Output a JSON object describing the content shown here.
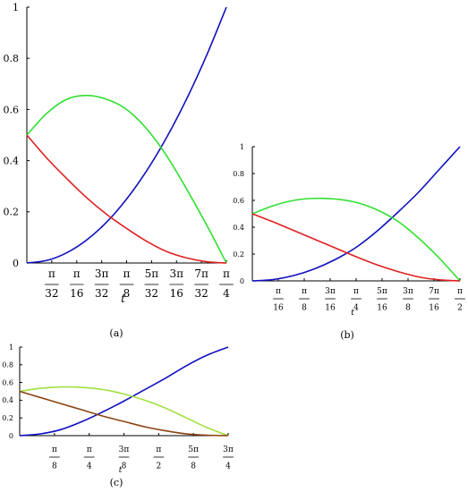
{
  "chart_data": [
    {
      "panel_label": "(a)",
      "type": "line",
      "xlabel": "t",
      "xlim": [
        0,
        0.7854
      ],
      "ylim": [
        0,
        1
      ],
      "x_ticks": [
        {
          "value": 0.09817,
          "num": "π",
          "den": "32"
        },
        {
          "value": 0.19635,
          "num": "π",
          "den": "16"
        },
        {
          "value": 0.29452,
          "num": "3π",
          "den": "32"
        },
        {
          "value": 0.3927,
          "num": "π",
          "den": "8"
        },
        {
          "value": 0.49087,
          "num": "5π",
          "den": "32"
        },
        {
          "value": 0.58905,
          "num": "3π",
          "den": "16"
        },
        {
          "value": 0.68722,
          "num": "7π",
          "den": "32"
        },
        {
          "value": 0.7854,
          "num": "π",
          "den": "4"
        }
      ],
      "y_ticks": [
        "0",
        "0.2",
        "0.4",
        "0.6",
        "0.8",
        "1"
      ],
      "y_tick_values": [
        0,
        0.2,
        0.4,
        0.6,
        0.8,
        1
      ],
      "series": [
        {
          "color": "#1010c0",
          "x": [
            0,
            0.0785,
            0.1571,
            0.2356,
            0.3142,
            0.3927,
            0.4712,
            0.5498,
            0.6283,
            0.7069,
            0.7854
          ],
          "y": [
            0,
            0.01,
            0.04,
            0.09,
            0.16,
            0.25,
            0.36,
            0.49,
            0.64,
            0.81,
            1.0
          ]
        },
        {
          "color": "#30e030",
          "x": [
            0,
            0.0785,
            0.1571,
            0.2356,
            0.3142,
            0.3927,
            0.4712,
            0.5498,
            0.6283,
            0.7069,
            0.7854
          ],
          "y": [
            0.5,
            0.585,
            0.64,
            0.655,
            0.64,
            0.6,
            0.525,
            0.42,
            0.29,
            0.15,
            0.0
          ]
        },
        {
          "color": "#e02020",
          "x": [
            0,
            0.0785,
            0.1571,
            0.2356,
            0.3142,
            0.3927,
            0.4712,
            0.5498,
            0.6283,
            0.7069,
            0.7854
          ],
          "y": [
            0.5,
            0.41,
            0.33,
            0.255,
            0.19,
            0.135,
            0.085,
            0.045,
            0.02,
            0.005,
            0.0
          ]
        }
      ]
    },
    {
      "panel_label": "(b)",
      "type": "line",
      "xlabel": "t",
      "xlim": [
        0,
        1.5708
      ],
      "ylim": [
        0,
        1
      ],
      "x_ticks": [
        {
          "value": 0.19635,
          "num": "π",
          "den": "16"
        },
        {
          "value": 0.3927,
          "num": "π",
          "den": "8"
        },
        {
          "value": 0.58905,
          "num": "3π",
          "den": "16"
        },
        {
          "value": 0.7854,
          "num": "π",
          "den": "4"
        },
        {
          "value": 0.98175,
          "num": "5π",
          "den": "16"
        },
        {
          "value": 1.1781,
          "num": "3π",
          "den": "8"
        },
        {
          "value": 1.37445,
          "num": "7π",
          "den": "16"
        },
        {
          "value": 1.5708,
          "num": "π",
          "den": "2"
        }
      ],
      "y_ticks": [
        "0",
        "0.2",
        "0.4",
        "0.6",
        "0.8",
        "1"
      ],
      "y_tick_values": [
        0,
        0.2,
        0.4,
        0.6,
        0.8,
        1
      ],
      "series": [
        {
          "color": "#1010c0",
          "x": [
            0,
            0.1571,
            0.3142,
            0.4712,
            0.6283,
            0.7854,
            0.9425,
            1.0996,
            1.2566,
            1.4137,
            1.5708
          ],
          "y": [
            0,
            0.01,
            0.04,
            0.09,
            0.16,
            0.25,
            0.37,
            0.51,
            0.66,
            0.83,
            1.0
          ]
        },
        {
          "color": "#30e030",
          "x": [
            0,
            0.1571,
            0.3142,
            0.4712,
            0.6283,
            0.7854,
            0.9425,
            1.0996,
            1.2566,
            1.4137,
            1.5708
          ],
          "y": [
            0.5,
            0.56,
            0.6,
            0.615,
            0.61,
            0.585,
            0.53,
            0.445,
            0.32,
            0.17,
            0.0
          ]
        },
        {
          "color": "#e02020",
          "x": [
            0,
            0.1571,
            0.3142,
            0.4712,
            0.6283,
            0.7854,
            0.9425,
            1.0996,
            1.2566,
            1.4137,
            1.5708
          ],
          "y": [
            0.5,
            0.44,
            0.375,
            0.31,
            0.245,
            0.18,
            0.12,
            0.07,
            0.03,
            0.008,
            0.0
          ]
        }
      ]
    },
    {
      "panel_label": "(c)",
      "type": "line",
      "xlabel": "t",
      "xlim": [
        0,
        2.35619
      ],
      "ylim": [
        0,
        1
      ],
      "x_ticks": [
        {
          "value": 0.3927,
          "num": "π",
          "den": "8"
        },
        {
          "value": 0.7854,
          "num": "π",
          "den": "4"
        },
        {
          "value": 1.1781,
          "num": "3π",
          "den": "8"
        },
        {
          "value": 1.5708,
          "num": "π",
          "den": "2"
        },
        {
          "value": 1.9635,
          "num": "5π",
          "den": "8"
        },
        {
          "value": 2.35619,
          "num": "3π",
          "den": "4"
        }
      ],
      "y_ticks": [
        "0",
        "0.2",
        "0.4",
        "0.6",
        "0.8",
        "1"
      ],
      "y_tick_values": [
        0,
        0.2,
        0.4,
        0.6,
        0.8,
        1
      ],
      "series": [
        {
          "color": "#1010c0",
          "x": [
            0,
            0.2356,
            0.4712,
            0.7069,
            0.9425,
            1.1781,
            1.4137,
            1.6493,
            1.885,
            2.1206,
            2.3562
          ],
          "y": [
            0,
            0.02,
            0.07,
            0.16,
            0.27,
            0.39,
            0.52,
            0.65,
            0.79,
            0.91,
            1.0
          ]
        },
        {
          "color": "#a0e040",
          "x": [
            0,
            0.2356,
            0.4712,
            0.7069,
            0.9425,
            1.1781,
            1.4137,
            1.6493,
            1.885,
            2.1206,
            2.3562
          ],
          "y": [
            0.5,
            0.535,
            0.55,
            0.545,
            0.52,
            0.47,
            0.4,
            0.31,
            0.2,
            0.09,
            0.0
          ]
        },
        {
          "color": "#8b4513",
          "x": [
            0,
            0.2356,
            0.4712,
            0.7069,
            0.9425,
            1.1781,
            1.4137,
            1.6493,
            1.885,
            2.1206,
            2.3562
          ],
          "y": [
            0.5,
            0.43,
            0.36,
            0.29,
            0.22,
            0.16,
            0.1,
            0.055,
            0.02,
            0.005,
            0.0
          ]
        }
      ]
    }
  ]
}
